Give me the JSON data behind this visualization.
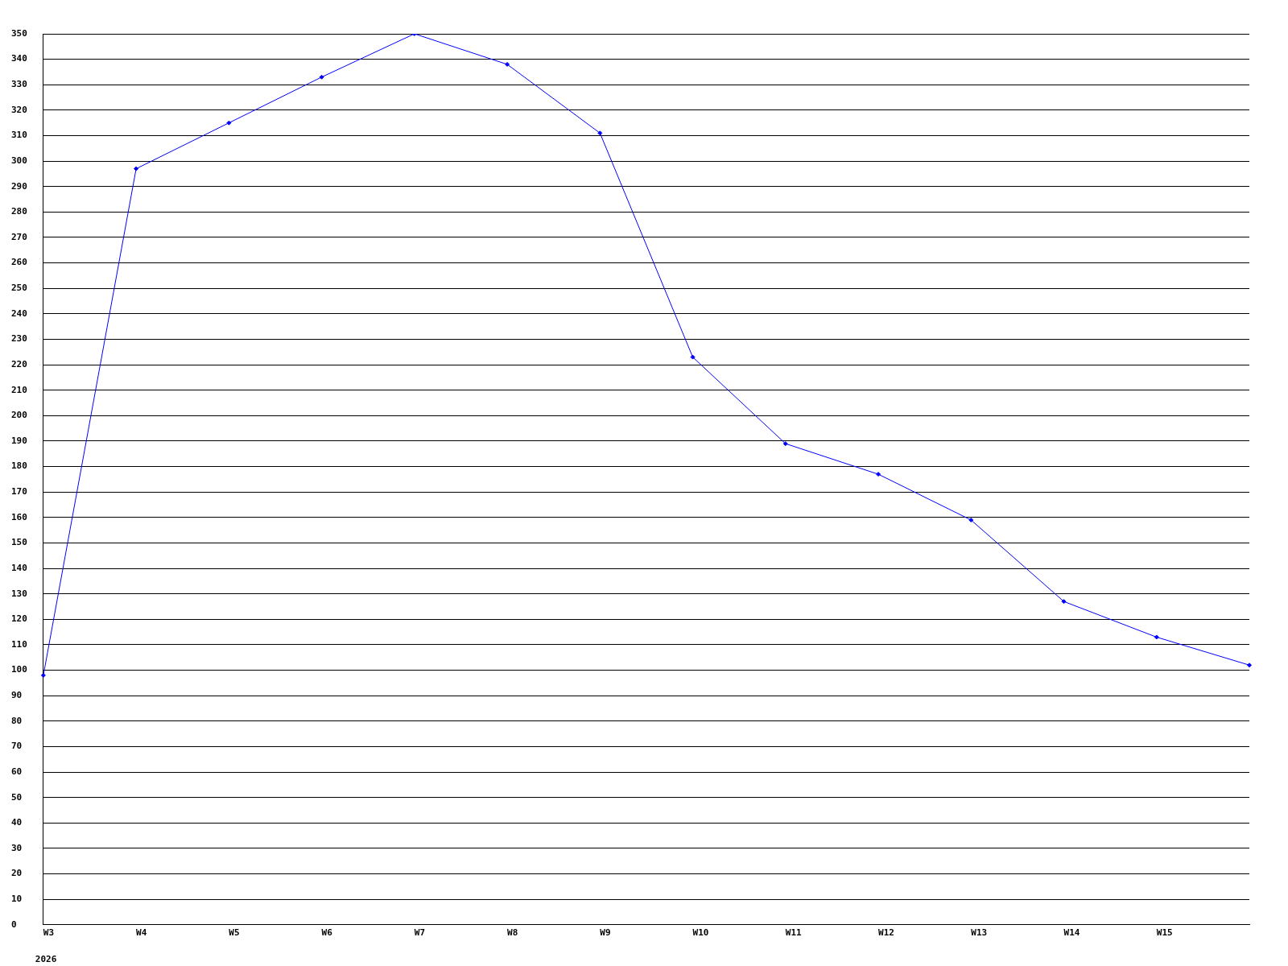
{
  "chart_data": {
    "type": "line",
    "categories": [
      "W3",
      "W4",
      "W5",
      "W6",
      "W7",
      "W8",
      "W9",
      "W10",
      "W11",
      "W12",
      "W13",
      "W14",
      "W15",
      null
    ],
    "series": [
      {
        "color": "#0000ff",
        "values": [
          98,
          297,
          315,
          333,
          350,
          338,
          311,
          223,
          189,
          177,
          159,
          127,
          113,
          102
        ]
      }
    ],
    "ylim": [
      0,
      350
    ],
    "yticks": [
      0,
      10,
      20,
      30,
      40,
      50,
      60,
      70,
      80,
      90,
      100,
      110,
      120,
      130,
      140,
      150,
      160,
      170,
      180,
      190,
      200,
      210,
      220,
      230,
      240,
      250,
      260,
      270,
      280,
      290,
      300,
      310,
      320,
      330,
      340,
      350
    ],
    "annotations": [
      "2026"
    ],
    "grid": "y",
    "legend": false,
    "marker": "diamond",
    "line_style": "solid"
  }
}
